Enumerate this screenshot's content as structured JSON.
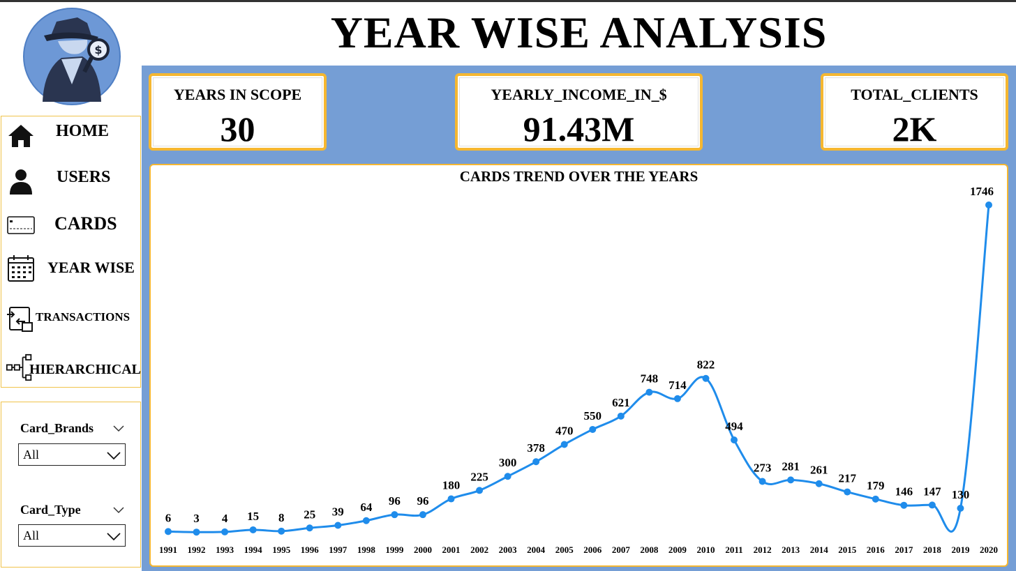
{
  "page": {
    "title": "YEAR WISE ANALYSIS"
  },
  "nav": {
    "items": [
      {
        "label": "HOME",
        "icon": "home-icon"
      },
      {
        "label": "USERS",
        "icon": "user-icon"
      },
      {
        "label": "CARDS",
        "icon": "credit-card-icon"
      },
      {
        "label": "YEAR WISE",
        "icon": "calendar-icon"
      },
      {
        "label": "TRANSACTIONS",
        "icon": "transactions-icon"
      },
      {
        "label": "HIERARCHICAL",
        "icon": "hierarchy-icon"
      }
    ]
  },
  "filters": {
    "brands": {
      "label": "Card_Brands",
      "value": "All"
    },
    "type": {
      "label": "Card_Type",
      "value": "All"
    }
  },
  "kpis": [
    {
      "label": "YEARS IN SCOPE",
      "value": "30"
    },
    {
      "label": "YEARLY_INCOME_IN_$",
      "value": "91.43M"
    },
    {
      "label": "TOTAL_CLIENTS",
      "value": "2K"
    }
  ],
  "colors": {
    "accent": "#f5b731",
    "panel": "#759ed5",
    "line": "#1f8ceb"
  },
  "chart_data": {
    "type": "line",
    "title": "CARDS TREND OVER THE YEARS",
    "categories": [
      "1991",
      "1992",
      "1993",
      "1994",
      "1995",
      "1996",
      "1997",
      "1998",
      "1999",
      "2000",
      "2001",
      "2002",
      "2003",
      "2004",
      "2005",
      "2006",
      "2007",
      "2008",
      "2009",
      "2010",
      "2011",
      "2012",
      "2013",
      "2014",
      "2015",
      "2016",
      "2017",
      "2018",
      "2019",
      "2020"
    ],
    "values": [
      6,
      3,
      4,
      15,
      8,
      25,
      39,
      64,
      96,
      96,
      180,
      225,
      300,
      378,
      470,
      550,
      621,
      748,
      714,
      822,
      494,
      273,
      281,
      261,
      217,
      179,
      146,
      147,
      130,
      1746
    ],
    "data_labels": true,
    "grid": false,
    "ylim": [
      0,
      1746
    ]
  }
}
